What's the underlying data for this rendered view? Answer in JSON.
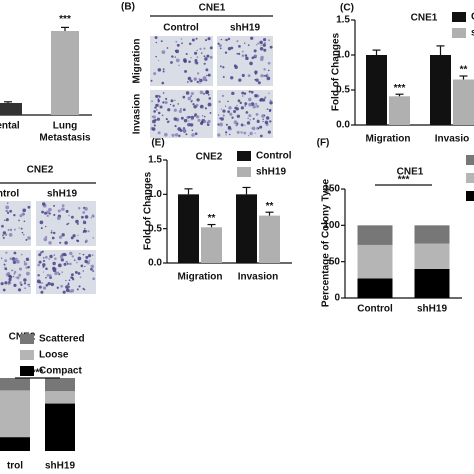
{
  "image_panels": [
    {
      "panel_label": "(B)",
      "title": "CNE1",
      "columns": [
        "Control",
        "shH19"
      ],
      "rows": [
        "Migration",
        "Invasion"
      ]
    },
    {
      "title": "CNE2",
      "columns": [
        "ntrol",
        "shH19"
      ]
    }
  ],
  "chart_data": [
    {
      "type": "bar",
      "categories": [
        [
          "ental"
        ],
        [
          "Lung",
          "Metastasis"
        ]
      ],
      "values": [
        1,
        7
      ],
      "errors": [
        0.1,
        0.3
      ],
      "colors": [
        "#333333",
        "#b0b0b0"
      ],
      "annotation": "***"
    },
    {
      "type": "grouped",
      "panel_label": "(C)",
      "title": "CNE1",
      "y_label": "Fold of Changes",
      "categories": [
        "Migration",
        "Invasio"
      ],
      "ylim": [
        0,
        1.5
      ],
      "yticks": [
        {
          "value": 0,
          "label": "0.0"
        },
        {
          "value": 0.5,
          "label": "0.5"
        },
        {
          "value": 1,
          "label": "1.0"
        },
        {
          "value": 1.5,
          "label": "1.5"
        }
      ],
      "series": [
        {
          "name": "Co",
          "color": "#111111",
          "values": [
            1.0,
            1.0
          ],
          "errors": [
            0.07,
            0.13
          ]
        },
        {
          "name": "sh",
          "color": "#b0b0b0",
          "values": [
            0.41,
            0.65
          ],
          "errors": [
            0.03,
            0.05
          ],
          "significance": [
            "***",
            "**"
          ]
        }
      ]
    },
    {
      "type": "grouped",
      "panel_label": "(E)",
      "title": "CNE2",
      "y_label": "Fold of Changes",
      "categories": [
        "Migration",
        "Invasion"
      ],
      "ylim": [
        0,
        1.5
      ],
      "yticks": [
        {
          "value": 0,
          "label": "0.0"
        },
        {
          "value": 0.5,
          "label": "0.5"
        },
        {
          "value": 1,
          "label": "1.0"
        },
        {
          "value": 1.5,
          "label": "1.5"
        }
      ],
      "series": [
        {
          "name": "Control",
          "color": "#111111",
          "values": [
            1.0,
            1.0
          ],
          "errors": [
            0.08,
            0.1
          ]
        },
        {
          "name": "shH19",
          "color": "#b0b0b0",
          "values": [
            0.52,
            0.69
          ],
          "errors": [
            0.04,
            0.05
          ],
          "significance": [
            "**",
            "**"
          ]
        }
      ]
    },
    {
      "type": "stacked",
      "panel_label": "(F)",
      "title": "CNE1",
      "y_label": "Percentage of Colony Type",
      "categories": [
        "Control",
        "shH19"
      ],
      "ylim": [
        0,
        150
      ],
      "yticks": [
        0,
        50,
        100,
        150
      ],
      "annotation": "***",
      "series": [
        {
          "color": "#000000",
          "values": [
            27,
            40
          ]
        },
        {
          "color": "#b5b5b5",
          "values": [
            46,
            35
          ]
        },
        {
          "color": "#777777",
          "values": [
            27,
            25
          ]
        }
      ]
    },
    {
      "type": "stacked",
      "title": "CNE2",
      "categories": [
        "trol",
        "shH19"
      ],
      "annotation": "***",
      "series": [
        {
          "name": "Compact",
          "color": "#000000",
          "values": [
            19,
            65
          ]
        },
        {
          "name": "Loose",
          "color": "#b5b5b5",
          "values": [
            64,
            17
          ]
        },
        {
          "name": "Scattered",
          "color": "#777777",
          "values": [
            17,
            18
          ]
        }
      ]
    }
  ]
}
